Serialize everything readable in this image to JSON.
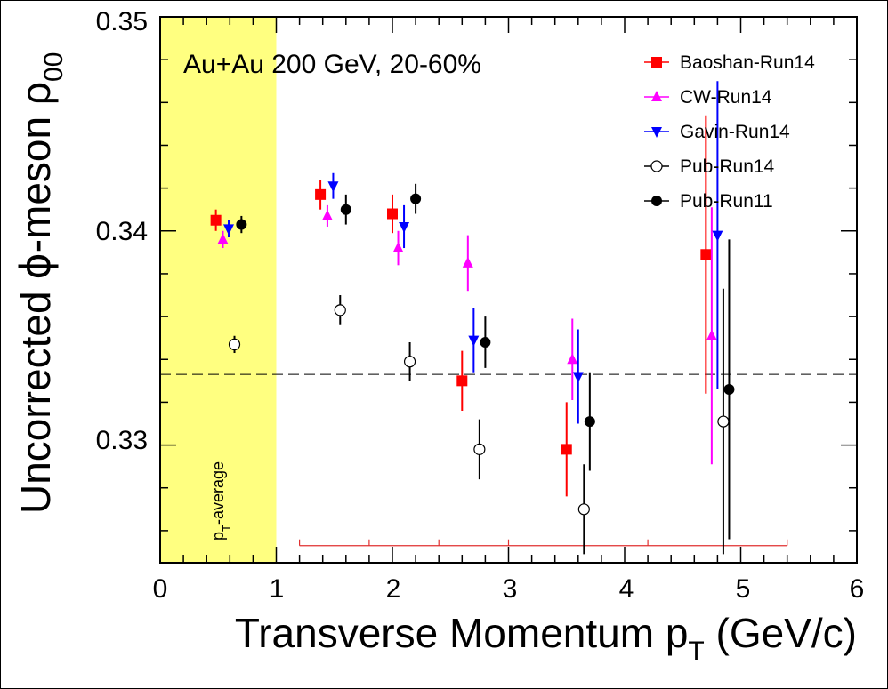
{
  "chart_data": {
    "type": "scatter",
    "annotation": "Au+Au 200 GeV, 20-60%",
    "band_label": "p_T-average",
    "xlabel": "Transverse Momentum p_T (GeV/c)",
    "ylabel": "Uncorrected φ-meson ρ_00",
    "xlim": [
      0,
      6
    ],
    "ylim": [
      0.3245,
      0.35
    ],
    "x_ticks": [
      "0",
      "1",
      "2",
      "3",
      "4",
      "5",
      "6"
    ],
    "y_ticks": [
      "0.33",
      "0.34",
      "0.35"
    ],
    "x_tick_values": [
      0,
      1,
      2,
      3,
      4,
      5,
      6
    ],
    "y_tick_values": [
      0.33,
      0.34,
      0.35
    ],
    "reference_line": 0.3333,
    "average_band": {
      "x_from": 0,
      "x_to": 1,
      "color": "#ffff80"
    },
    "bin_bar": {
      "x_from": 1.2,
      "x_to": 5.4,
      "y": 0.3253,
      "edges": [
        1.2,
        1.8,
        2.4,
        3.0,
        4.2,
        5.4
      ],
      "color": "#e03030"
    },
    "legend_position": "top-right",
    "series": [
      {
        "name": "Baoshan-Run14",
        "color": "#ff0000",
        "marker": "square",
        "points": [
          {
            "x": 0.48,
            "y": 0.3405,
            "err": 0.0005
          },
          {
            "x": 1.38,
            "y": 0.3417,
            "err": 0.0007
          },
          {
            "x": 2.0,
            "y": 0.3408,
            "err": 0.0009
          },
          {
            "x": 2.6,
            "y": 0.333,
            "err": 0.0014
          },
          {
            "x": 3.5,
            "y": 0.3298,
            "err": 0.0022
          },
          {
            "x": 4.7,
            "y": 0.3389,
            "err": 0.0065
          }
        ]
      },
      {
        "name": "CW-Run14",
        "color": "#ff00ff",
        "marker": "triangle-up",
        "points": [
          {
            "x": 0.54,
            "y": 0.3396,
            "err": 0.0004
          },
          {
            "x": 1.44,
            "y": 0.3407,
            "err": 0.0005
          },
          {
            "x": 2.05,
            "y": 0.3392,
            "err": 0.0008
          },
          {
            "x": 2.65,
            "y": 0.3385,
            "err": 0.0013
          },
          {
            "x": 3.55,
            "y": 0.334,
            "err": 0.0019
          },
          {
            "x": 4.75,
            "y": 0.3351,
            "err": 0.006
          }
        ]
      },
      {
        "name": "Gavin-Run14",
        "color": "#0000ff",
        "marker": "triangle-down",
        "points": [
          {
            "x": 0.59,
            "y": 0.3401,
            "err": 0.0004
          },
          {
            "x": 1.49,
            "y": 0.3421,
            "err": 0.0006
          },
          {
            "x": 2.1,
            "y": 0.3402,
            "err": 0.001
          },
          {
            "x": 2.7,
            "y": 0.3349,
            "err": 0.0015
          },
          {
            "x": 3.6,
            "y": 0.3332,
            "err": 0.0022
          },
          {
            "x": 4.8,
            "y": 0.3398,
            "err": 0.0072
          }
        ]
      },
      {
        "name": "Pub-Run14",
        "color": "#000000",
        "marker": "circle-open",
        "points": [
          {
            "x": 0.64,
            "y": 0.3347,
            "err": 0.0004
          },
          {
            "x": 1.55,
            "y": 0.3363,
            "err": 0.0007
          },
          {
            "x": 2.15,
            "y": 0.3339,
            "err": 0.0009
          },
          {
            "x": 2.75,
            "y": 0.3298,
            "err": 0.0014
          },
          {
            "x": 3.65,
            "y": 0.327,
            "err": 0.0021
          },
          {
            "x": 4.85,
            "y": 0.3311,
            "err": 0.0062
          }
        ]
      },
      {
        "name": "Pub-Run11",
        "color": "#000000",
        "marker": "circle-filled",
        "points": [
          {
            "x": 0.7,
            "y": 0.3403,
            "err": 0.0004
          },
          {
            "x": 1.6,
            "y": 0.341,
            "err": 0.0007
          },
          {
            "x": 2.2,
            "y": 0.3415,
            "err": 0.0007
          },
          {
            "x": 2.8,
            "y": 0.3348,
            "err": 0.0012
          },
          {
            "x": 3.7,
            "y": 0.3311,
            "err": 0.0023
          },
          {
            "x": 4.9,
            "y": 0.3326,
            "err": 0.007
          }
        ]
      }
    ]
  }
}
